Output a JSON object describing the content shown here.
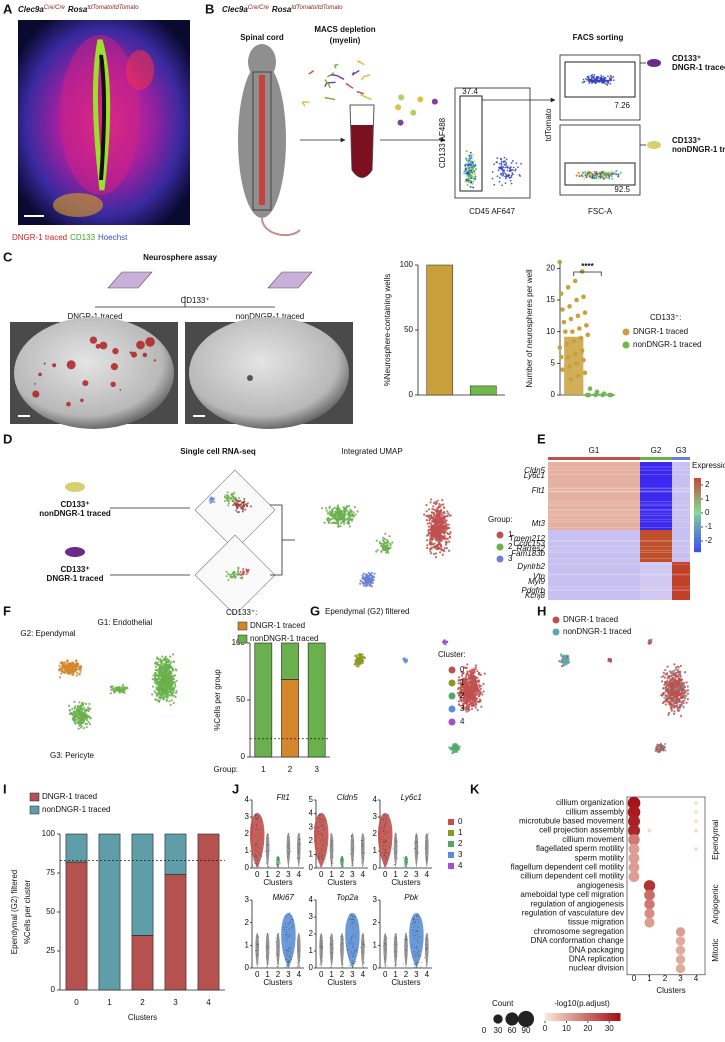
{
  "figure": {
    "panel_labels": [
      "A",
      "B",
      "C",
      "D",
      "E",
      "F",
      "G",
      "H",
      "I",
      "J",
      "K"
    ],
    "genotype": {
      "gene1": "Clec9a",
      "allele1": "Cre/Cre",
      "gene2": "Rosa",
      "allele2": "tdTomato/tdTomato"
    },
    "a": {
      "stains": [
        {
          "name": "DNGR-1 traced",
          "color": "#d62020"
        },
        {
          "name": "CD133",
          "color": "#3aa62e"
        },
        {
          "name": "Hoechst",
          "color": "#3a4fd6"
        }
      ]
    },
    "b": {
      "tissue": "Spinal cord",
      "depletion": "MACS depletion",
      "depletion_note": "(myelin)",
      "sorting": "FACS sorting",
      "gate_x_label": "CD45 AF647",
      "gate_y_label": "CD133 AF488",
      "gate_percent": 37.4,
      "sort_x_label": "FSC-A",
      "sort_y_label": "tdTomato",
      "top_percent": 7.26,
      "bottom_percent": 92.5,
      "populations": [
        {
          "marker": "CD133⁺",
          "name": "DNGR-1 traced"
        },
        {
          "marker": "CD133⁺",
          "name": "nonDNGR-1 traced"
        }
      ]
    },
    "c": {
      "title": "Neurosphere assay",
      "marker": "CD133⁺",
      "wells": [
        "DNGR-1 traced",
        "nonDNGR-1 traced"
      ]
    },
    "d": {
      "method": "Single cell RNA-seq",
      "umap_title": "Integrated UMAP",
      "samples": [
        {
          "marker": "CD133⁺",
          "name": "nonDNGR-1 traced"
        },
        {
          "marker": "CD133⁺",
          "name": "DNGR-1 traced"
        }
      ],
      "legend_title": "Group:",
      "groups": [
        {
          "name": "1",
          "color": "#c0504d"
        },
        {
          "name": "2",
          "color": "#6ab04c"
        },
        {
          "name": "3",
          "color": "#6a7fd6"
        }
      ]
    },
    "e": {
      "groups": [
        "G1",
        "G2",
        "G3"
      ],
      "genes": [
        "Cldn5",
        "Ly6c1",
        "Flt1",
        "Mt3",
        "Tmem212",
        "Ccdc153",
        "Rarres2",
        "Fam183b",
        "Dynlrb2",
        "Vtn",
        "Myl9",
        "Pdgfrb",
        "Kcnj8"
      ],
      "legend_title": "Expression",
      "legend_ticks": [
        2,
        1,
        0,
        -1,
        -2
      ],
      "legend_lim": [
        -2.5,
        2.5
      ]
    },
    "f": {
      "clusters": [
        "G1: Endothelial",
        "G2: Ependymal",
        "G3: Pericyte"
      ]
    },
    "g": {
      "title": "Ependymal (G2) filtered",
      "legend_title": "Cluster:",
      "clusters": [
        {
          "name": "0",
          "color": "#c0504d"
        },
        {
          "name": "1",
          "color": "#8a9a20"
        },
        {
          "name": "2",
          "color": "#4faa6a"
        },
        {
          "name": "3",
          "color": "#5a8fd6"
        },
        {
          "name": "4",
          "color": "#a050d0"
        }
      ]
    },
    "h": {
      "legend": [
        {
          "name": "DNGR-1 traced",
          "color": "#c0504d"
        },
        {
          "name": "nonDNGR-1 traced",
          "color": "#5fa8b0"
        }
      ]
    },
    "j": {
      "x_label": "Clusters",
      "genes": [
        {
          "name": "Flt1",
          "ylim": [
            0,
            4
          ],
          "yticks": [
            0,
            1,
            2,
            3,
            4
          ]
        },
        {
          "name": "Cldn5",
          "ylim": [
            0,
            5
          ],
          "yticks": [
            0,
            1,
            2,
            3,
            4,
            5
          ]
        },
        {
          "name": "Ly6c1",
          "ylim": [
            0,
            4
          ],
          "yticks": [
            0,
            1,
            2,
            3,
            4
          ]
        },
        {
          "name": "Mki67",
          "ylim": [
            0,
            3
          ],
          "yticks": [
            0,
            1,
            2,
            3
          ]
        },
        {
          "name": "Top2a",
          "ylim": [
            0,
            4
          ],
          "yticks": [
            0,
            1,
            2,
            3,
            4
          ]
        },
        {
          "name": "Pbk",
          "ylim": [
            0,
            3
          ],
          "yticks": [
            0,
            1,
            2,
            3
          ]
        }
      ]
    }
  },
  "chart_data": [
    {
      "type": "bar",
      "y_label": "%Neurosphere-containing wells",
      "categories": [
        null,
        null
      ],
      "values": [
        100,
        7
      ],
      "colors": [
        "#c9a03c",
        "#70b84a"
      ],
      "ylim": [
        0,
        100
      ],
      "yticks": [
        0,
        50,
        100
      ]
    },
    {
      "type": "dot-bar",
      "y_label": "Number of neurospheres per well",
      "annotation": "****",
      "legend_title": "CD133⁺:",
      "ylim": [
        0,
        21
      ],
      "yticks": [
        0,
        5,
        10,
        15,
        20
      ],
      "series": [
        {
          "name": "DNGR-1 traced",
          "color": "#c9a03c",
          "value": 9.2,
          "points": [
            21,
            19.5,
            18,
            17,
            16,
            15.5,
            15,
            14,
            13.5,
            13,
            12.5,
            12,
            11.5,
            11,
            10.5,
            10,
            10,
            9.5,
            9,
            8.5,
            8,
            7.5,
            7,
            6.5,
            6,
            6,
            5.5,
            5,
            4.5,
            4,
            3.5,
            3,
            2.5
          ]
        },
        {
          "name": "nonDNGR-1 traced",
          "color": "#70b84a",
          "value": 0.2,
          "points": [
            0,
            0,
            0,
            0,
            0,
            0,
            0.2,
            0.5,
            1
          ]
        }
      ]
    },
    {
      "type": "stacked-bar",
      "legend_title": "CD133⁺:",
      "y_label": [
        "%Cells per group"
      ],
      "x_label": "Group:",
      "categories": [
        "1",
        "2",
        "3"
      ],
      "ylim": [
        0,
        100
      ],
      "yticks": [
        0,
        50,
        100
      ],
      "reference_line": 16,
      "series": [
        {
          "name": "DNGR-1 traced",
          "color": "#d4862a",
          "values": [
            0,
            68,
            0
          ]
        },
        {
          "name": "nonDNGR-1 traced",
          "color": "#6ab04c",
          "values": [
            100,
            32,
            100
          ]
        }
      ]
    },
    {
      "type": "stacked-bar",
      "y_label": [
        "Ependymal (G2) filtered",
        "%Cells per cluster"
      ],
      "x_label": "Clusters",
      "categories": [
        "0",
        "1",
        "2",
        "3",
        "4"
      ],
      "ylim": [
        0,
        100
      ],
      "yticks": [
        0,
        25,
        50,
        75,
        100
      ],
      "reference_line": 83,
      "series": [
        {
          "name": "DNGR-1 traced",
          "color": "#b5514e",
          "values": [
            82,
            0,
            35,
            74,
            100
          ]
        },
        {
          "name": "nonDNGR-1 traced",
          "color": "#5f9ea8",
          "values": [
            18,
            100,
            65,
            26,
            0
          ]
        }
      ]
    },
    {
      "type": "dotplot",
      "x_label": "Clusters",
      "categories": [
        "cillium organization",
        "cillium assembly",
        "microtubule based movement",
        "cell projection assembly",
        "cillium movement",
        "flagellated sperm motility",
        "sperm motility",
        "flagellum dependent cell motility",
        "cillium dependent cell motility",
        "angiogenesis",
        "ameboidal type cell migration",
        "regulation of angiogenesis",
        "regulation of vasculature dev",
        "tissue migration",
        "chromosome segregation",
        "DNA conformation change",
        "DNA packaging",
        "DNA replication",
        "nuclear division"
      ],
      "group_labels": [
        "Ependymal",
        "Angiogenic",
        "Mitotic"
      ],
      "series": [
        {
          "name": "0",
          "counts": [
            55,
            55,
            50,
            50,
            45,
            40,
            40,
            40,
            40,
            null,
            null,
            null,
            null,
            null,
            null,
            null,
            null,
            null,
            null
          ],
          "values": [
            35,
            34,
            33,
            32,
            18,
            12,
            12,
            12,
            12,
            null,
            null,
            null,
            null,
            null,
            null,
            null,
            null,
            null,
            null
          ]
        },
        {
          "name": "1",
          "counts": [
            null,
            null,
            null,
            5,
            null,
            null,
            null,
            null,
            null,
            45,
            40,
            38,
            35,
            35,
            null,
            null,
            null,
            null,
            null
          ],
          "values": [
            null,
            null,
            null,
            2,
            null,
            null,
            null,
            null,
            null,
            30,
            20,
            18,
            15,
            12,
            null,
            null,
            null,
            null,
            null
          ]
        },
        {
          "name": "2",
          "counts": [
            null,
            null,
            null,
            null,
            null,
            null,
            null,
            null,
            null,
            null,
            null,
            null,
            null,
            null,
            null,
            null,
            null,
            null,
            null
          ],
          "values": [
            null,
            null,
            null,
            null,
            null,
            null,
            null,
            null,
            null,
            null,
            null,
            null,
            null,
            null,
            null,
            null,
            null,
            null,
            null
          ]
        },
        {
          "name": "3",
          "counts": [
            null,
            null,
            null,
            null,
            null,
            null,
            null,
            null,
            null,
            null,
            null,
            null,
            null,
            null,
            30,
            30,
            30,
            30,
            30
          ],
          "values": [
            null,
            null,
            null,
            null,
            null,
            null,
            null,
            null,
            null,
            null,
            null,
            null,
            null,
            null,
            12,
            10,
            10,
            10,
            10
          ]
        },
        {
          "name": "4",
          "counts": [
            5,
            5,
            5,
            5,
            null,
            5,
            null,
            null,
            null,
            null,
            null,
            null,
            null,
            null,
            null,
            null,
            null,
            null,
            null
          ],
          "values": [
            1,
            1,
            1,
            1,
            null,
            1,
            null,
            null,
            null,
            null,
            null,
            null,
            null,
            null,
            null,
            null,
            null,
            null,
            null
          ]
        }
      ],
      "size_legend": {
        "title": "Count",
        "ticks": [
          0,
          30,
          60,
          90
        ]
      },
      "color_legend": {
        "title": "-log10(p.adjust)",
        "ticks": [
          0,
          10,
          20,
          30
        ],
        "lim": [
          0,
          35
        ]
      }
    }
  ]
}
